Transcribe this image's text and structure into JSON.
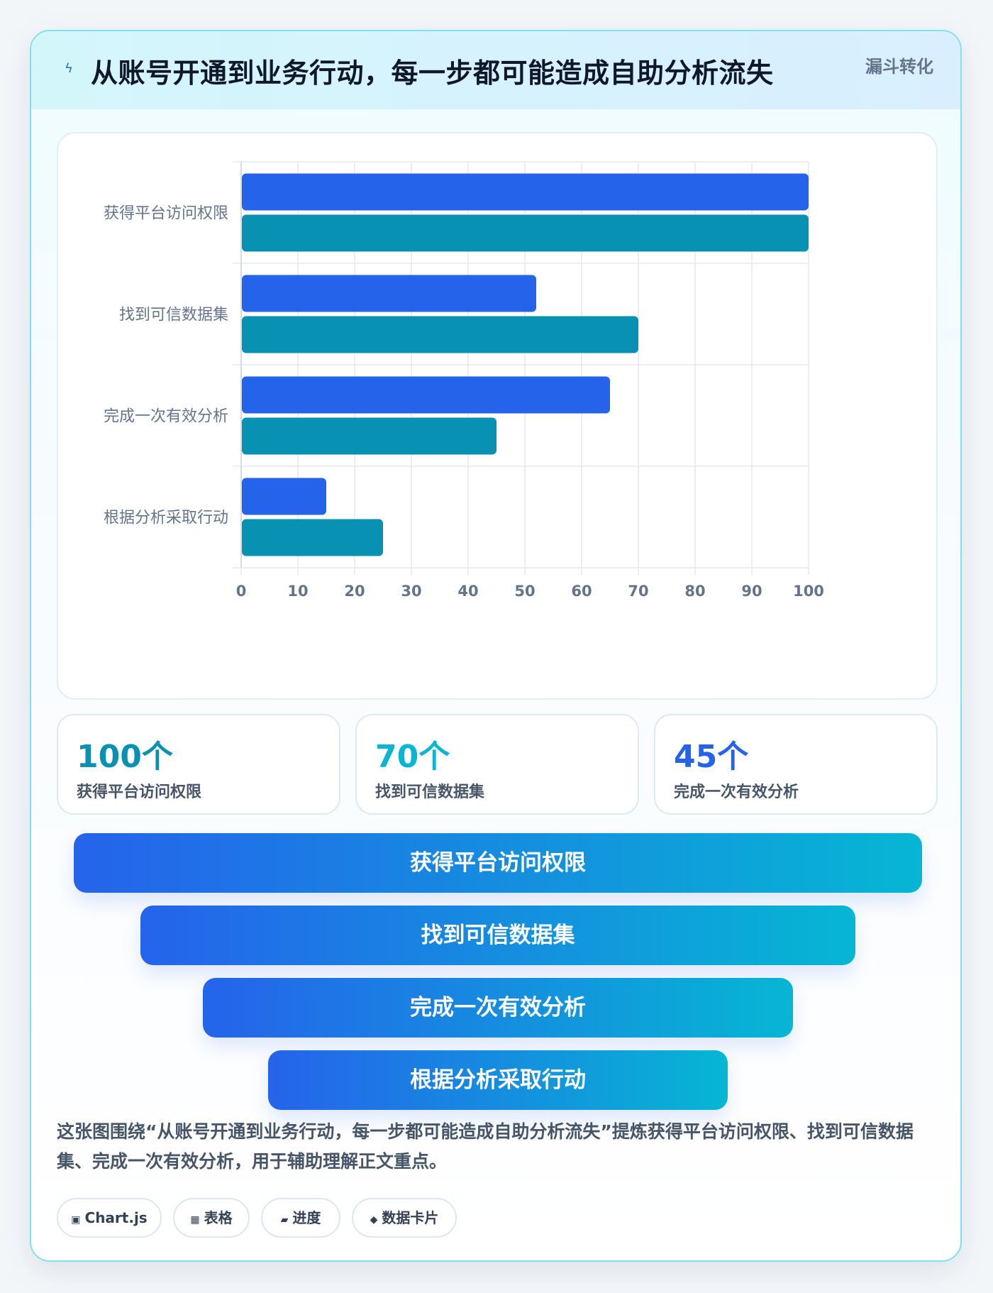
{
  "header": {
    "title": "从账号开通到业务行动，每一步都可能造成自助分析流失",
    "badge": "漏斗转化",
    "icon": "bolt-icon"
  },
  "colors": {
    "series_a": "#2563eb",
    "series_b": "#0891b2",
    "stat1": "#0891b2",
    "stat2": "#06b6d4",
    "stat3": "#2563eb"
  },
  "chart_data": {
    "type": "bar",
    "orientation": "horizontal",
    "categories": [
      "获得平台访问权限",
      "找到可信数据集",
      "完成一次有效分析",
      "根据分析采取行动"
    ],
    "series": [
      {
        "values": [
          100,
          52,
          65,
          15
        ]
      },
      {
        "values": [
          100,
          70,
          45,
          25
        ]
      }
    ],
    "xlim": [
      0,
      100
    ],
    "xticks": [
      0,
      10,
      20,
      30,
      40,
      50,
      60,
      70,
      80,
      90,
      100
    ],
    "grid": true,
    "legend": "none"
  },
  "stats": [
    {
      "value": "100个",
      "label": "获得平台访问权限"
    },
    {
      "value": "70个",
      "label": "找到可信数据集"
    },
    {
      "value": "45个",
      "label": "完成一次有效分析"
    }
  ],
  "funnel": [
    "获得平台访问权限",
    "找到可信数据集",
    "完成一次有效分析",
    "根据分析采取行动"
  ],
  "description": "这张图围绕“从账号开通到业务行动，每一步都可能造成自助分析流失”提炼获得平台访问权限、找到可信数据集、完成一次有效分析，用于辅助理解正文重点。",
  "tags": [
    {
      "icon": "▣",
      "label": "Chart.js"
    },
    {
      "icon": "▦",
      "label": "表格"
    },
    {
      "icon": "▰",
      "label": "进度"
    },
    {
      "icon": "◆",
      "label": "数据卡片"
    }
  ]
}
